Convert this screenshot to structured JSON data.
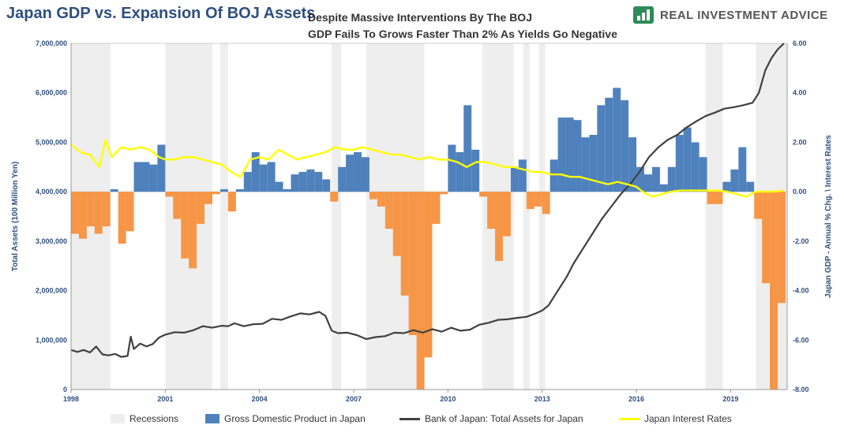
{
  "header": {
    "title": "Japan GDP vs. Expansion Of BOJ Assets",
    "subtitle_line1": "Despite Massive Interventions By The BOJ",
    "subtitle_line2": "GDP Fails To Grows Faster Than 2% As Yields Go Negative",
    "brand": "REAL INVESTMENT ADVICE",
    "brand_color": "#2e8b57"
  },
  "chart_data": {
    "type": "bar",
    "title": "Japan GDP vs. Expansion Of BOJ Assets",
    "x_range": [
      1998.0,
      2020.8
    ],
    "x_ticks": [
      "1998",
      "2001",
      "2004",
      "2007",
      "2010",
      "2013",
      "2016",
      "2019"
    ],
    "left_axis": {
      "label": "Total Assets (100 Million Yen)",
      "range": [
        0,
        7000000
      ],
      "ticks": [
        "0",
        "1,000,000",
        "2,000,000",
        "3,000,000",
        "4,000,000",
        "5,000,000",
        "6,000,000",
        "7,000,000"
      ]
    },
    "right_axis": {
      "label": "Japan GDP - Annual % Chg. \\ Interest Rates",
      "range": [
        -8,
        6
      ],
      "ticks": [
        "-8.00",
        "-6.00",
        "-4.00",
        "-2.00",
        "0.00",
        "2.00",
        "4.00",
        "6.00"
      ]
    },
    "legend_entries": [
      "Recessions",
      "Gross Domestic Product in Japan",
      "Bank of Japan: Total Assets for Japan",
      "Japan Interest Rates"
    ],
    "colors": {
      "recession": "#eeeeee",
      "gdp_positive": "#4f81bd",
      "gdp_negative": "#f79646",
      "boj": "#404040",
      "rates": "#ffff00"
    },
    "recessions": [
      [
        1998.0,
        1999.25
      ],
      [
        2001.0,
        2002.5
      ],
      [
        2002.75,
        2003.0
      ],
      [
        2006.3,
        2006.6
      ],
      [
        2007.4,
        2009.25
      ],
      [
        2011.1,
        2012.1
      ],
      [
        2012.4,
        2012.6
      ],
      [
        2012.9,
        2013.1
      ],
      [
        2018.2,
        2018.75
      ],
      [
        2019.8,
        2020.8
      ]
    ],
    "gdp_series": {
      "name": "Gross Domestic Product in Japan",
      "bar_width": 0.25,
      "x": [
        1998.0,
        1998.25,
        1998.5,
        1998.75,
        1999.0,
        1999.25,
        1999.5,
        1999.75,
        2000.0,
        2000.25,
        2000.5,
        2000.75,
        2001.0,
        2001.25,
        2001.5,
        2001.75,
        2002.0,
        2002.25,
        2002.5,
        2002.75,
        2003.0,
        2003.25,
        2003.5,
        2003.75,
        2004.0,
        2004.25,
        2004.5,
        2004.75,
        2005.0,
        2005.25,
        2005.5,
        2005.75,
        2006.0,
        2006.25,
        2006.5,
        2006.75,
        2007.0,
        2007.25,
        2007.5,
        2007.75,
        2008.0,
        2008.25,
        2008.5,
        2008.75,
        2009.0,
        2009.25,
        2009.5,
        2009.75,
        2010.0,
        2010.25,
        2010.5,
        2010.75,
        2011.0,
        2011.25,
        2011.5,
        2011.75,
        2012.0,
        2012.25,
        2012.5,
        2012.75,
        2013.0,
        2013.25,
        2013.5,
        2013.75,
        2014.0,
        2014.25,
        2014.5,
        2014.75,
        2015.0,
        2015.25,
        2015.5,
        2015.75,
        2016.0,
        2016.25,
        2016.5,
        2016.75,
        2017.0,
        2017.25,
        2017.5,
        2017.75,
        2018.0,
        2018.25,
        2018.5,
        2018.75,
        2019.0,
        2019.25,
        2019.5,
        2019.75,
        2020.0,
        2020.25,
        2020.5
      ],
      "values": [
        -1.7,
        -1.9,
        -1.4,
        -1.7,
        -1.4,
        0.1,
        -2.1,
        -1.6,
        1.2,
        1.2,
        1.1,
        1.9,
        -0.2,
        -1.1,
        -2.7,
        -3.1,
        -1.3,
        -0.5,
        -0.1,
        0.1,
        -0.8,
        0.1,
        0.8,
        1.6,
        1.1,
        1.2,
        0.4,
        0.1,
        0.7,
        0.8,
        0.9,
        0.8,
        0.5,
        -0.4,
        1.0,
        1.5,
        1.6,
        1.4,
        -0.3,
        -0.6,
        -1.5,
        -2.6,
        -4.2,
        -5.8,
        -8.0,
        -6.7,
        -1.3,
        -0.1,
        1.9,
        1.6,
        3.5,
        1.7,
        -0.2,
        -1.5,
        -2.8,
        -1.8,
        1.0,
        1.3,
        -0.7,
        -0.6,
        -0.9,
        1.3,
        3.0,
        3.0,
        2.9,
        2.2,
        2.3,
        3.5,
        3.8,
        4.2,
        3.7,
        2.2,
        1.0,
        0.7,
        1.0,
        0.3,
        1.0,
        2.3,
        2.6,
        2.0,
        1.4,
        -0.5,
        -0.5,
        0.4,
        0.9,
        1.8,
        0.4,
        -1.1,
        -3.7,
        -10.0,
        -4.5
      ]
    },
    "boj_series": {
      "name": "Bank of Japan: Total Assets for Japan",
      "x": [
        1998.0,
        1998.2,
        1998.4,
        1998.6,
        1998.8,
        1999.0,
        1999.2,
        1999.4,
        1999.6,
        1999.8,
        1999.9,
        2000.0,
        2000.2,
        2000.4,
        2000.6,
        2000.8,
        2001.0,
        2001.3,
        2001.6,
        2001.9,
        2002.2,
        2002.5,
        2002.8,
        2003.0,
        2003.2,
        2003.5,
        2003.8,
        2004.1,
        2004.4,
        2004.7,
        2005.0,
        2005.3,
        2005.6,
        2005.9,
        2006.1,
        2006.3,
        2006.5,
        2006.8,
        2007.1,
        2007.4,
        2007.7,
        2008.0,
        2008.3,
        2008.6,
        2008.9,
        2009.2,
        2009.5,
        2009.8,
        2010.1,
        2010.4,
        2010.7,
        2011.0,
        2011.3,
        2011.6,
        2011.9,
        2012.2,
        2012.5,
        2012.8,
        2013.0,
        2013.2,
        2013.4,
        2013.6,
        2013.8,
        2014.0,
        2014.3,
        2014.6,
        2014.9,
        2015.2,
        2015.5,
        2015.8,
        2016.1,
        2016.4,
        2016.7,
        2017.0,
        2017.3,
        2017.6,
        2017.9,
        2018.2,
        2018.5,
        2018.8,
        2019.1,
        2019.4,
        2019.7,
        2019.9,
        2020.1,
        2020.3,
        2020.5,
        2020.7
      ],
      "values": [
        800000,
        760000,
        800000,
        750000,
        870000,
        710000,
        690000,
        720000,
        660000,
        680000,
        1070000,
        820000,
        930000,
        870000,
        920000,
        1050000,
        1110000,
        1160000,
        1150000,
        1200000,
        1280000,
        1250000,
        1290000,
        1280000,
        1340000,
        1280000,
        1320000,
        1330000,
        1430000,
        1410000,
        1480000,
        1540000,
        1520000,
        1570000,
        1490000,
        1190000,
        1140000,
        1150000,
        1100000,
        1020000,
        1060000,
        1080000,
        1150000,
        1140000,
        1200000,
        1150000,
        1220000,
        1170000,
        1250000,
        1190000,
        1210000,
        1310000,
        1350000,
        1410000,
        1420000,
        1450000,
        1470000,
        1540000,
        1600000,
        1700000,
        1900000,
        2100000,
        2300000,
        2550000,
        2850000,
        3150000,
        3450000,
        3700000,
        3950000,
        4150000,
        4400000,
        4700000,
        4900000,
        5050000,
        5150000,
        5300000,
        5420000,
        5530000,
        5600000,
        5680000,
        5710000,
        5750000,
        5800000,
        6000000,
        6450000,
        6700000,
        6880000,
        7000000
      ]
    },
    "rate_series": {
      "name": "Japan Interest Rates",
      "x": [
        1998.0,
        1998.3,
        1998.6,
        1998.9,
        1999.1,
        1999.3,
        1999.6,
        1999.9,
        2000.2,
        2000.5,
        2000.8,
        2001.0,
        2001.3,
        2001.6,
        2001.9,
        2002.2,
        2002.5,
        2002.8,
        2003.1,
        2003.4,
        2003.7,
        2004.0,
        2004.3,
        2004.6,
        2004.9,
        2005.2,
        2005.5,
        2005.8,
        2006.1,
        2006.4,
        2006.7,
        2007.0,
        2007.3,
        2007.6,
        2007.9,
        2008.2,
        2008.5,
        2008.8,
        2009.1,
        2009.4,
        2009.7,
        2010.0,
        2010.3,
        2010.6,
        2010.9,
        2011.2,
        2011.5,
        2011.8,
        2012.1,
        2012.4,
        2012.7,
        2013.0,
        2013.3,
        2013.6,
        2013.9,
        2014.2,
        2014.5,
        2014.8,
        2015.1,
        2015.4,
        2015.7,
        2016.0,
        2016.2,
        2016.5,
        2016.8,
        2017.1,
        2017.4,
        2017.7,
        2018.0,
        2018.3,
        2018.6,
        2018.9,
        2019.2,
        2019.5,
        2019.8,
        2020.1,
        2020.4,
        2020.7
      ],
      "values": [
        1.9,
        1.6,
        1.5,
        1.0,
        2.1,
        1.4,
        1.8,
        1.7,
        1.8,
        1.7,
        1.4,
        1.3,
        1.3,
        1.4,
        1.4,
        1.3,
        1.2,
        1.1,
        0.8,
        0.6,
        1.3,
        1.4,
        1.3,
        1.7,
        1.5,
        1.3,
        1.4,
        1.5,
        1.6,
        1.8,
        1.7,
        1.7,
        1.8,
        1.7,
        1.6,
        1.5,
        1.5,
        1.4,
        1.3,
        1.4,
        1.3,
        1.3,
        1.2,
        1.0,
        1.2,
        1.2,
        1.1,
        1.0,
        1.0,
        0.9,
        0.8,
        0.8,
        0.7,
        0.7,
        0.6,
        0.6,
        0.5,
        0.4,
        0.3,
        0.4,
        0.3,
        0.2,
        0.0,
        -0.2,
        -0.1,
        0.0,
        0.05,
        0.05,
        0.05,
        0.05,
        0.05,
        0.0,
        -0.1,
        -0.2,
        0.0,
        0.0,
        0.0,
        0.05
      ]
    }
  }
}
